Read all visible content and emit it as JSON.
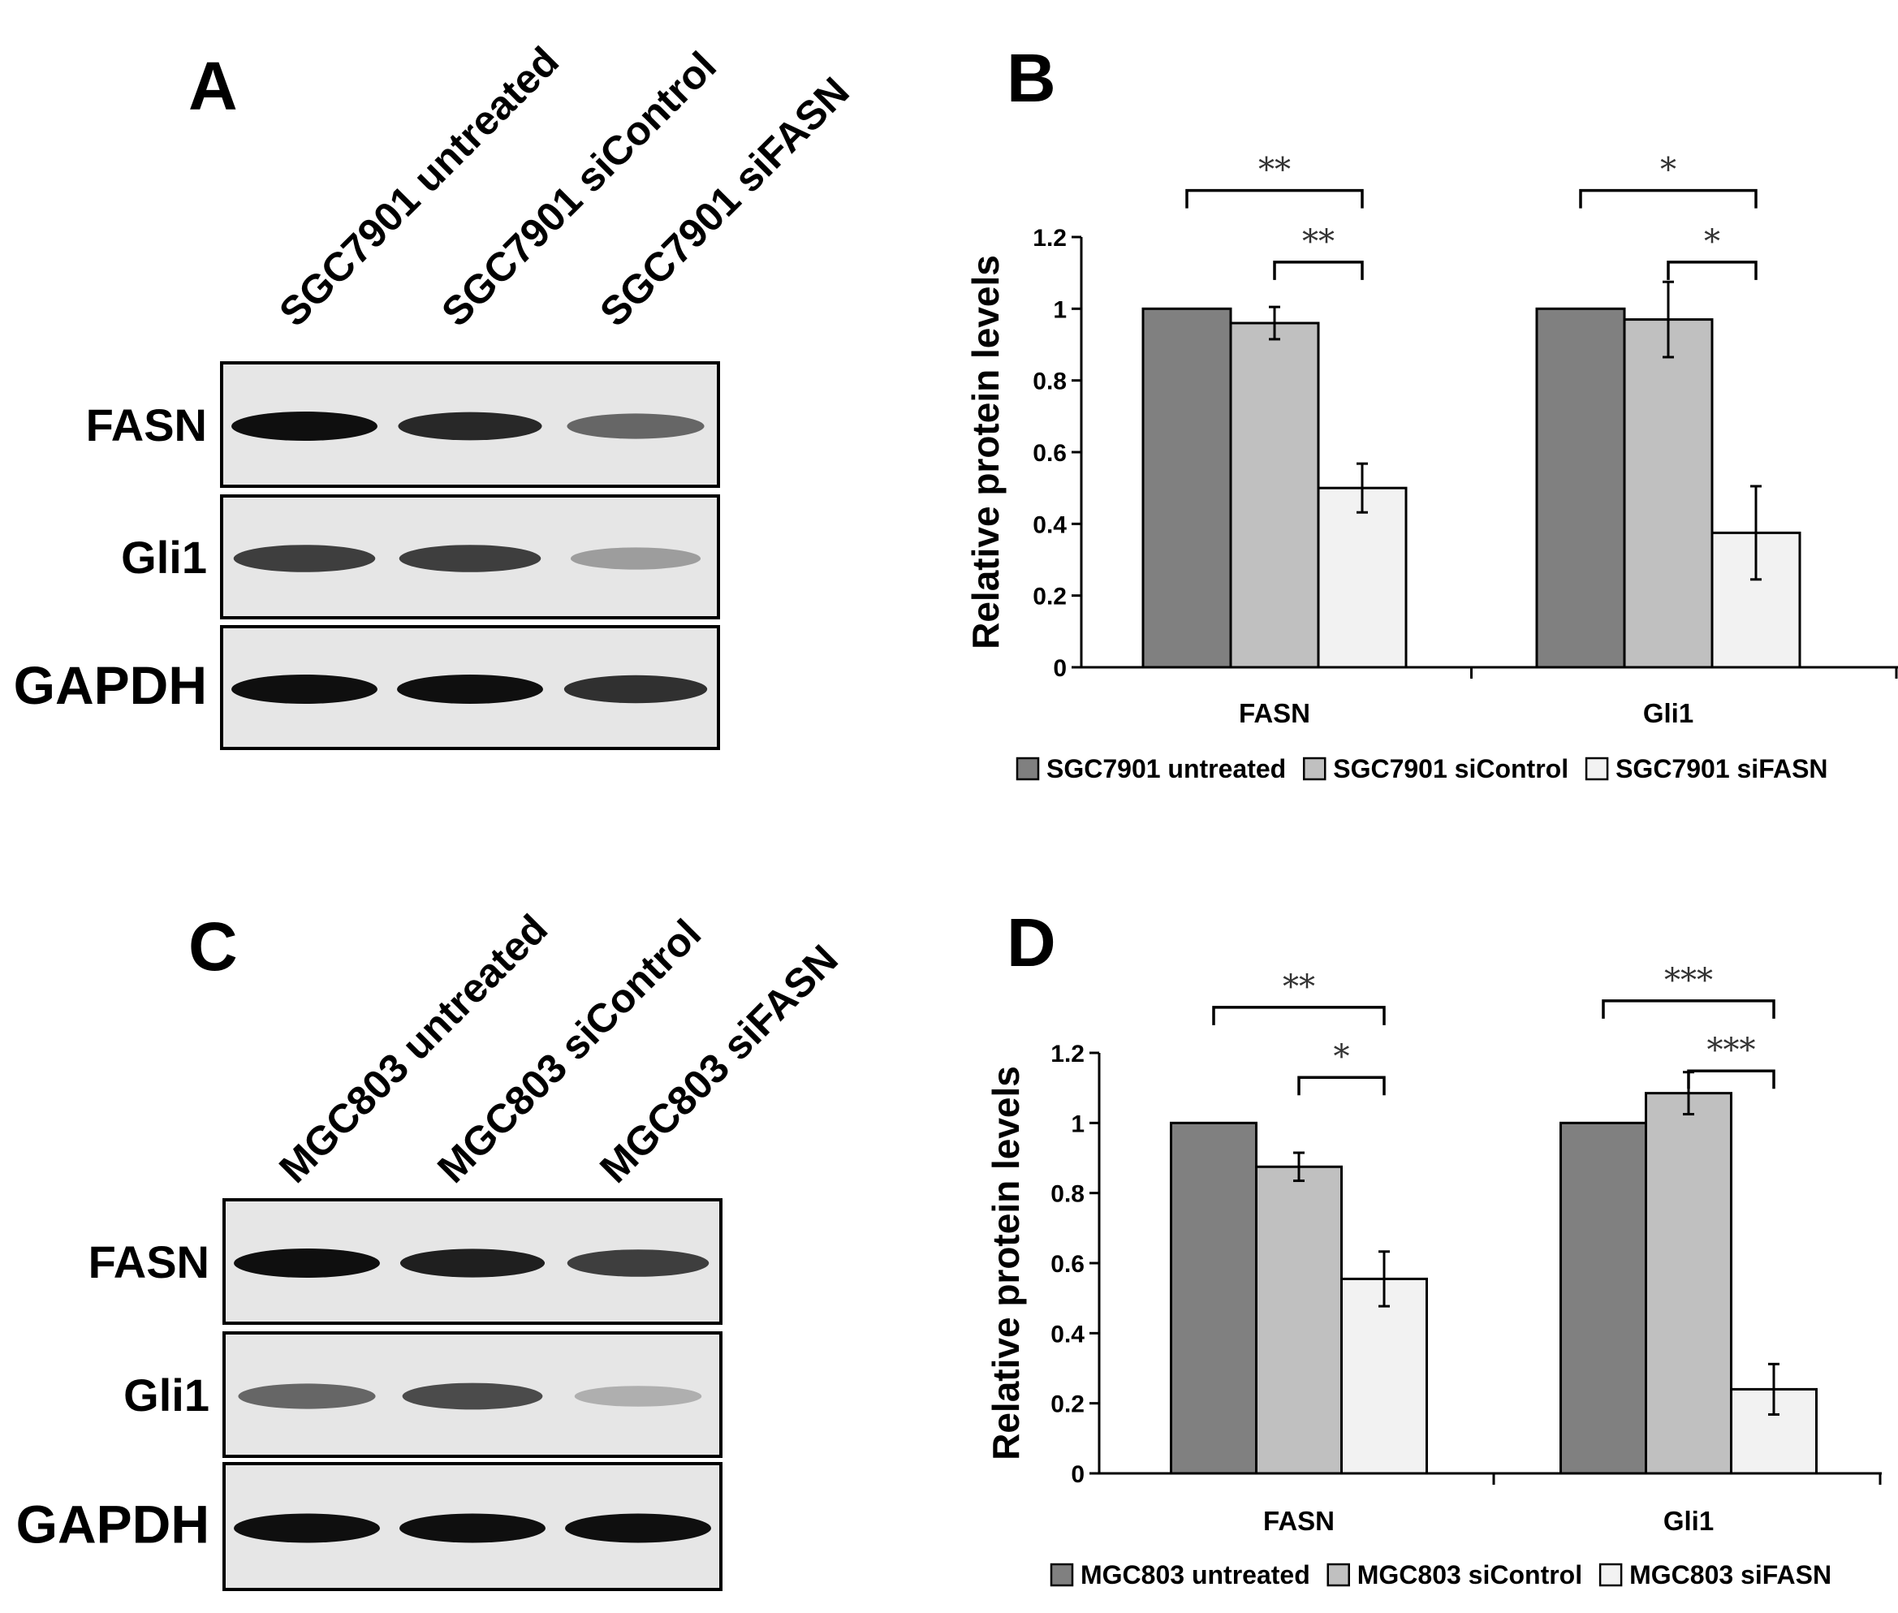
{
  "panels": {
    "A": "A",
    "B": "B",
    "C": "C",
    "D": "D"
  },
  "western_blots": [
    {
      "lanes": [
        "SGC7901 untreated",
        "SGC7901 siControl",
        "SGC7901 siFASN"
      ],
      "rows": [
        {
          "label": "FASN",
          "intensities": [
            1.0,
            0.92,
            0.7
          ]
        },
        {
          "label": "Gli1",
          "intensities": [
            0.85,
            0.85,
            0.45
          ]
        },
        {
          "label": "GAPDH",
          "intensities": [
            1.0,
            1.0,
            0.9
          ]
        }
      ]
    },
    {
      "lanes": [
        "MGC803 untreated",
        "MGC803 siControl",
        "MGC803 siFASN"
      ],
      "rows": [
        {
          "label": "FASN",
          "intensities": [
            1.0,
            0.95,
            0.85
          ]
        },
        {
          "label": "Gli1",
          "intensities": [
            0.7,
            0.8,
            0.35
          ]
        },
        {
          "label": "GAPDH",
          "intensities": [
            1.0,
            1.0,
            1.0
          ]
        }
      ]
    }
  ],
  "chart_data": [
    {
      "type": "bar",
      "ylabel": "Relative protein levels",
      "ylim": [
        0,
        1.2
      ],
      "yticks": [
        "0",
        "0.2",
        "0.4",
        "0.6",
        "0.8",
        "1",
        "1.2"
      ],
      "categories": [
        "FASN",
        "Gli1"
      ],
      "series": [
        {
          "name": "SGC7901 untreated",
          "color": "#808080",
          "values": [
            1.0,
            1.0
          ],
          "errors": [
            0,
            0
          ]
        },
        {
          "name": "SGC7901 siControl",
          "color": "#c0c0c0",
          "values": [
            0.96,
            0.97
          ],
          "errors": [
            0.045,
            0.105
          ]
        },
        {
          "name": "SGC7901 siFASN",
          "color": "#f2f2f2",
          "values": [
            0.5,
            0.375
          ],
          "errors": [
            0.068,
            0.13
          ]
        }
      ],
      "significance": [
        {
          "category": 0,
          "from": 0,
          "to": 2,
          "label": "**"
        },
        {
          "category": 0,
          "from": 1,
          "to": 2,
          "label": "**"
        },
        {
          "category": 1,
          "from": 0,
          "to": 2,
          "label": "*"
        },
        {
          "category": 1,
          "from": 1,
          "to": 2,
          "label": "*"
        }
      ],
      "legend_position": "bottom"
    },
    {
      "type": "bar",
      "ylabel": "Relative protein levels",
      "ylim": [
        0,
        1.2
      ],
      "yticks": [
        "0",
        "0.2",
        "0.4",
        "0.6",
        "0.8",
        "1",
        "1.2"
      ],
      "categories": [
        "FASN",
        "Gli1"
      ],
      "series": [
        {
          "name": "MGC803 untreated",
          "color": "#808080",
          "values": [
            1.0,
            1.0
          ],
          "errors": [
            0,
            0
          ]
        },
        {
          "name": "MGC803 siControl",
          "color": "#c0c0c0",
          "values": [
            0.875,
            1.085
          ],
          "errors": [
            0.04,
            0.06
          ]
        },
        {
          "name": "MGC803 siFASN",
          "color": "#f2f2f2",
          "values": [
            0.555,
            0.24
          ],
          "errors": [
            0.078,
            0.072
          ]
        }
      ],
      "significance": [
        {
          "category": 0,
          "from": 0,
          "to": 2,
          "label": "**"
        },
        {
          "category": 0,
          "from": 1,
          "to": 2,
          "label": "*"
        },
        {
          "category": 1,
          "from": 0,
          "to": 2,
          "label": "***"
        },
        {
          "category": 1,
          "from": 1,
          "to": 2,
          "label": "***"
        }
      ],
      "legend_position": "bottom"
    }
  ]
}
